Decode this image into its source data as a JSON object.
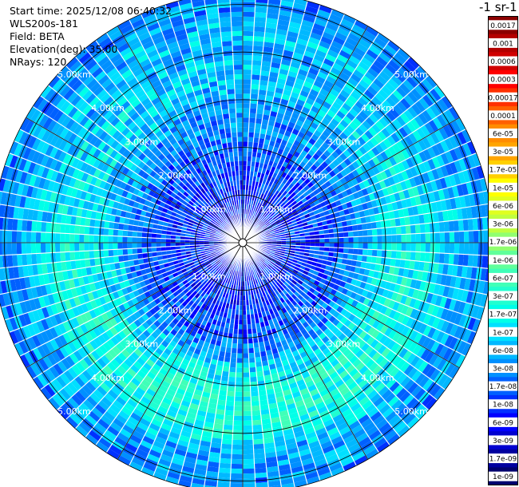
{
  "header": {
    "start_time": "Start time: 2025/12/08 06:40:32",
    "instrument": "WLS200s-181",
    "field": "Field: BETA",
    "elevation": "Elevation(deg): 35.00",
    "nrays": "NRays: 120"
  },
  "colorbar": {
    "title": "-1 sr-1",
    "labels": [
      "0.0017",
      "0.001",
      "0.0006",
      "0.0003",
      "0.00017",
      "0.0001",
      "6e-05",
      "3e-05",
      "1.7e-05",
      "1e-05",
      "6e-06",
      "3e-06",
      "1.7e-06",
      "1e-06",
      "6e-07",
      "3e-07",
      "1.7e-07",
      "1e-07",
      "6e-08",
      "3e-08",
      "1.7e-08",
      "1e-08",
      "6e-09",
      "3e-09",
      "1.7e-09",
      "1e-09"
    ],
    "colors": [
      "#8b0000",
      "#b30000",
      "#d00000",
      "#ff0000",
      "#ff3000",
      "#ff6000",
      "#ff8c00",
      "#ffa500",
      "#ffd000",
      "#ffff00",
      "#e0ff20",
      "#c0ff40",
      "#90ff70",
      "#60ff9a",
      "#40ffb8",
      "#20ffd0",
      "#00ffe8",
      "#00e0ff",
      "#00b8ff",
      "#0090ff",
      "#0060ff",
      "#0030ff",
      "#0000ff",
      "#0000d0",
      "#0000a0",
      "#00006e"
    ]
  },
  "chart_data": {
    "type": "heatmap",
    "projection": "polar-ppi",
    "field": "BETA",
    "elevation_deg": 35.0,
    "n_rays": 120,
    "range_rings_km": [
      1,
      2,
      3,
      4,
      5
    ],
    "ring_labels": [
      "1.00km",
      "2.00km",
      "3.00km",
      "4.00km",
      "5.00km"
    ],
    "max_range_km": 5.25,
    "color_scale": "log",
    "value_range": [
      1e-09,
      0.0017
    ],
    "spokes_deg": [
      0,
      30,
      60,
      90,
      120,
      150,
      180,
      210,
      240,
      270,
      300,
      330
    ],
    "radial_profile": [
      {
        "range_km": 0.0,
        "value": 6e-09
      },
      {
        "range_km": 1.0,
        "value": 1e-08
      },
      {
        "range_km": 2.0,
        "value": 1.7e-08
      },
      {
        "range_km": 2.6,
        "value": 6e-08
      },
      {
        "range_km": 3.2,
        "value": 1.7e-07
      },
      {
        "range_km": 3.8,
        "value": 1.7e-07
      },
      {
        "range_km": 4.5,
        "value": 6e-08
      },
      {
        "range_km": 5.25,
        "value": 3e-08
      }
    ]
  }
}
